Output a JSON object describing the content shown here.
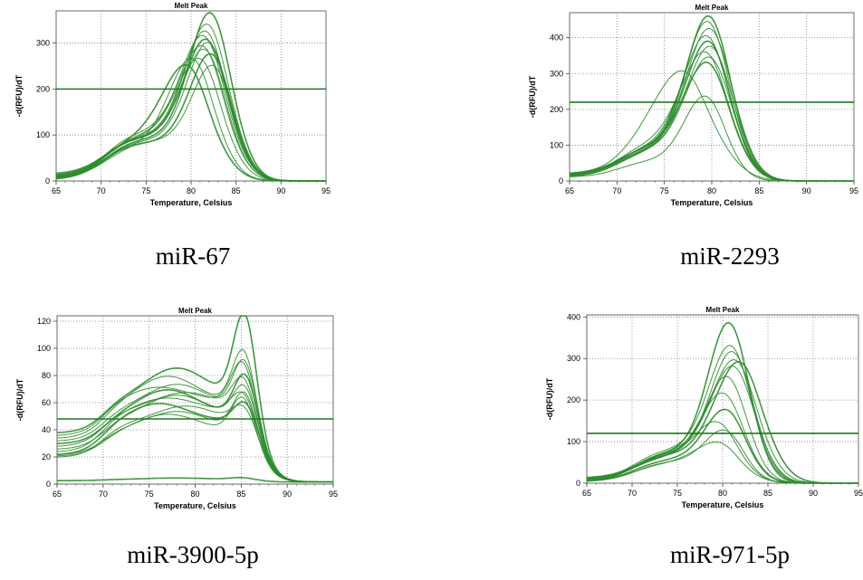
{
  "colors": {
    "curve": "#2e8b2e",
    "threshold": "#1f7a1f",
    "plot_bg": "#ffffff",
    "grid": "#7f7f7f"
  },
  "chart_data": [
    {
      "type": "line",
      "title": "Melt Peak",
      "xlabel": "Temperature, Celsius",
      "ylabel": "-d(RFU)/dT",
      "xlim": [
        65,
        95
      ],
      "ylim": [
        0,
        370
      ],
      "xticks": [
        65,
        70,
        75,
        80,
        85,
        90,
        95
      ],
      "yticks": [
        0,
        100,
        200,
        300
      ],
      "threshold": 200,
      "grid": true,
      "caption": "miR-67",
      "series": [
        {
          "peak_x": 82.3,
          "peak_y": 370,
          "shoulder": 95,
          "base": 2,
          "width": 2.4
        },
        {
          "peak_x": 82.0,
          "peak_y": 345,
          "shoulder": 100,
          "base": 5,
          "width": 2.5
        },
        {
          "peak_x": 81.8,
          "peak_y": 330,
          "shoulder": 100,
          "base": 8,
          "width": 2.5
        },
        {
          "peak_x": 81.6,
          "peak_y": 320,
          "shoulder": 105,
          "base": 3,
          "width": 2.6
        },
        {
          "peak_x": 81.9,
          "peak_y": 312,
          "shoulder": 98,
          "base": 12,
          "width": 2.5
        },
        {
          "peak_x": 82.1,
          "peak_y": 305,
          "shoulder": 90,
          "base": 6,
          "width": 2.4
        },
        {
          "peak_x": 81.5,
          "peak_y": 298,
          "shoulder": 110,
          "base": 4,
          "width": 2.6
        },
        {
          "peak_x": 81.7,
          "peak_y": 290,
          "shoulder": 95,
          "base": 15,
          "width": 2.5
        },
        {
          "peak_x": 82.4,
          "peak_y": 280,
          "shoulder": 85,
          "base": 9,
          "width": 2.4
        },
        {
          "peak_x": 81.2,
          "peak_y": 270,
          "shoulder": 100,
          "base": 7,
          "width": 2.6
        },
        {
          "peak_x": 82.6,
          "peak_y": 255,
          "shoulder": 88,
          "base": 3,
          "width": 2.3
        },
        {
          "peak_x": 80.3,
          "peak_y": 270,
          "shoulder": 80,
          "base": 5,
          "width": 2.6
        },
        {
          "peak_x": 79.8,
          "peak_y": 255,
          "shoulder": 95,
          "base": 10,
          "width": 2.8
        }
      ]
    },
    {
      "type": "line",
      "title": "Melt Peak",
      "xlabel": "Temperature, Celsius",
      "ylabel": "-d(RFU)/dT",
      "xlim": [
        65,
        95
      ],
      "ylim": [
        0,
        470
      ],
      "xticks": [
        65,
        70,
        75,
        80,
        85,
        90,
        95
      ],
      "yticks": [
        0,
        100,
        200,
        300,
        400
      ],
      "threshold": 220,
      "grid": true,
      "caption": "miR-2293",
      "series": [
        {
          "peak_x": 79.8,
          "peak_y": 465,
          "shoulder": 95,
          "base": 15,
          "width": 2.4
        },
        {
          "peak_x": 79.7,
          "peak_y": 450,
          "shoulder": 100,
          "base": 18,
          "width": 2.4
        },
        {
          "peak_x": 79.9,
          "peak_y": 430,
          "shoulder": 90,
          "base": 12,
          "width": 2.5
        },
        {
          "peak_x": 79.6,
          "peak_y": 410,
          "shoulder": 100,
          "base": 20,
          "width": 2.5
        },
        {
          "peak_x": 79.8,
          "peak_y": 395,
          "shoulder": 105,
          "base": 14,
          "width": 2.4
        },
        {
          "peak_x": 80.0,
          "peak_y": 380,
          "shoulder": 95,
          "base": 10,
          "width": 2.5
        },
        {
          "peak_x": 79.5,
          "peak_y": 365,
          "shoulder": 110,
          "base": 16,
          "width": 2.6
        },
        {
          "peak_x": 79.9,
          "peak_y": 350,
          "shoulder": 92,
          "base": 12,
          "width": 2.5
        },
        {
          "peak_x": 79.7,
          "peak_y": 335,
          "shoulder": 100,
          "base": 18,
          "width": 2.5
        },
        {
          "peak_x": 79.4,
          "peak_y": 240,
          "shoulder": 60,
          "base": 10,
          "width": 2.2
        },
        {
          "peak_x": 77.2,
          "peak_y": 310,
          "shoulder": 90,
          "base": 20,
          "width": 3.2
        }
      ]
    },
    {
      "type": "line",
      "title": "Melt Peak",
      "xlabel": "Temperature, Celsius",
      "ylabel": "-d(RFU)/dT",
      "xlim": [
        65,
        95
      ],
      "ylim": [
        0,
        124
      ],
      "xticks": [
        65,
        70,
        75,
        80,
        85,
        90,
        95
      ],
      "yticks": [
        0,
        20,
        40,
        60,
        80,
        100,
        120
      ],
      "threshold": 48,
      "grid": true,
      "caption": "miR-3900-5p",
      "series": [
        {
          "plateau": 62,
          "hump_x": 78,
          "hump_y": 84,
          "peak_x": 85.4,
          "peak_y": 118,
          "start": 36
        },
        {
          "plateau": 58,
          "hump_x": 77,
          "hump_y": 78,
          "peak_x": 85.3,
          "peak_y": 91,
          "start": 32
        },
        {
          "plateau": 55,
          "hump_x": 78,
          "hump_y": 72,
          "peak_x": 85.4,
          "peak_y": 84,
          "start": 30
        },
        {
          "plateau": 60,
          "hump_x": 76,
          "hump_y": 70,
          "peak_x": 85.2,
          "peak_y": 82,
          "start": 34
        },
        {
          "plateau": 50,
          "hump_x": 77,
          "hump_y": 68,
          "peak_x": 85.5,
          "peak_y": 75,
          "start": 28
        },
        {
          "plateau": 54,
          "hump_x": 79,
          "hump_y": 66,
          "peak_x": 85.3,
          "peak_y": 70,
          "start": 26
        },
        {
          "plateau": 48,
          "hump_x": 78,
          "hump_y": 64,
          "peak_x": 85.4,
          "peak_y": 66,
          "start": 24
        },
        {
          "plateau": 52,
          "hump_x": 77,
          "hump_y": 62,
          "peak_x": 85.2,
          "peak_y": 60,
          "start": 22
        },
        {
          "plateau": 45,
          "hump_x": 76,
          "hump_y": 58,
          "peak_x": 85.5,
          "peak_y": 55,
          "start": 20
        },
        {
          "plateau": 44,
          "hump_x": 79,
          "hump_y": 56,
          "peak_x": 85.3,
          "peak_y": 50,
          "start": 18
        },
        {
          "plateau": 40,
          "hump_x": 78,
          "hump_y": 52,
          "peak_x": 85.4,
          "peak_y": 62,
          "start": 20
        },
        {
          "plateau": 38,
          "hump_x": 77,
          "hump_y": 50,
          "peak_x": 85.2,
          "peak_y": 58,
          "start": 19
        },
        {
          "plateau": 2,
          "hump_x": 78,
          "hump_y": 3,
          "peak_x": 85.0,
          "peak_y": 3,
          "start": 1
        }
      ]
    },
    {
      "type": "line",
      "title": "Melt Peak",
      "xlabel": "Temperature, Celsius",
      "ylabel": "-d(RFU)/dT",
      "xlim": [
        65,
        95
      ],
      "ylim": [
        0,
        405
      ],
      "xticks": [
        65,
        70,
        75,
        80,
        85,
        90,
        95
      ],
      "yticks": [
        0,
        100,
        200,
        300,
        400
      ],
      "threshold": 120,
      "grid": true,
      "caption": "miR-971-5p",
      "series": [
        {
          "peak_x": 80.8,
          "peak_y": 390,
          "shoulder": 80,
          "base": 5,
          "width": 2.3
        },
        {
          "peak_x": 81.0,
          "peak_y": 335,
          "shoulder": 85,
          "base": 8,
          "width": 2.4
        },
        {
          "peak_x": 81.2,
          "peak_y": 320,
          "shoulder": 75,
          "base": 10,
          "width": 2.4
        },
        {
          "peak_x": 81.5,
          "peak_y": 300,
          "shoulder": 80,
          "base": 6,
          "width": 2.6
        },
        {
          "peak_x": 82.0,
          "peak_y": 295,
          "shoulder": 70,
          "base": 12,
          "width": 2.7
        },
        {
          "peak_x": 81.3,
          "peak_y": 285,
          "shoulder": 78,
          "base": 4,
          "width": 2.5
        },
        {
          "peak_x": 80.6,
          "peak_y": 260,
          "shoulder": 72,
          "base": 9,
          "width": 2.3
        },
        {
          "peak_x": 80.2,
          "peak_y": 220,
          "shoulder": 70,
          "base": 7,
          "width": 2.4
        },
        {
          "peak_x": 80.5,
          "peak_y": 180,
          "shoulder": 60,
          "base": 5,
          "width": 2.3
        },
        {
          "peak_x": 79.6,
          "peak_y": 150,
          "shoulder": 65,
          "base": 11,
          "width": 2.5
        },
        {
          "peak_x": 79.8,
          "peak_y": 100,
          "shoulder": 50,
          "base": 6,
          "width": 2.6
        },
        {
          "peak_x": 80.4,
          "peak_y": 130,
          "shoulder": 55,
          "base": 3,
          "width": 2.2
        }
      ]
    }
  ]
}
